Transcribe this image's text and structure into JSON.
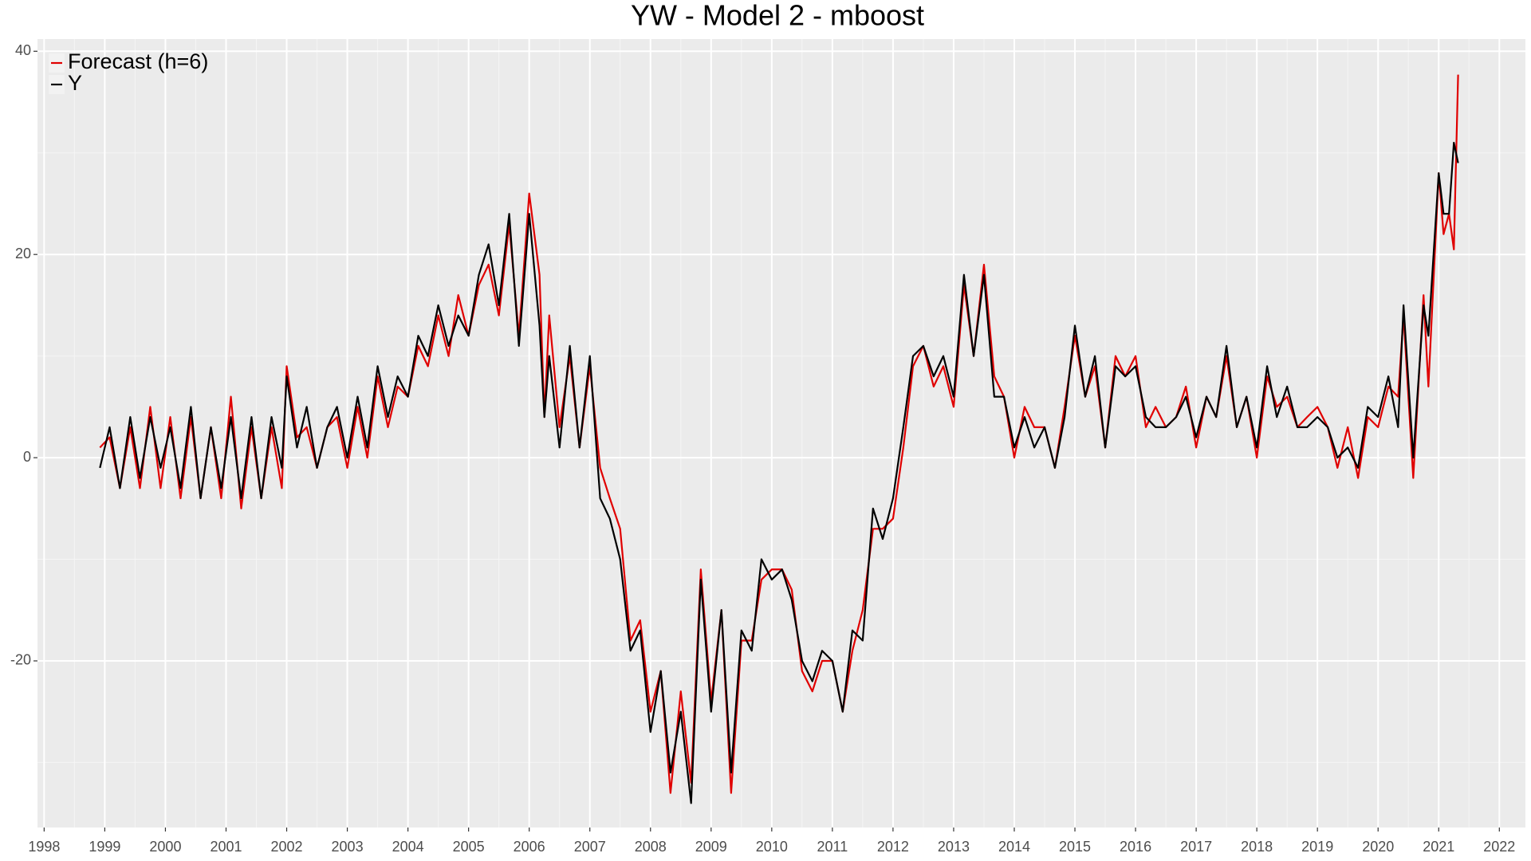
{
  "chart_data": {
    "type": "line",
    "title": "YW - Model 2 - mboost",
    "x": [
      1998.92,
      1999.08,
      1999.25,
      1999.42,
      1999.58,
      1999.75,
      1999.92,
      2000.08,
      2000.25,
      2000.42,
      2000.58,
      2000.75,
      2000.92,
      2001.08,
      2001.25,
      2001.42,
      2001.58,
      2001.75,
      2001.92,
      2002.0,
      2002.17,
      2002.33,
      2002.5,
      2002.67,
      2002.83,
      2003.0,
      2003.17,
      2003.33,
      2003.5,
      2003.67,
      2003.83,
      2004.0,
      2004.17,
      2004.33,
      2004.5,
      2004.67,
      2004.83,
      2005.0,
      2005.17,
      2005.33,
      2005.5,
      2005.67,
      2005.83,
      2006.0,
      2006.17,
      2006.25,
      2006.33,
      2006.5,
      2006.67,
      2006.83,
      2007.0,
      2007.17,
      2007.33,
      2007.5,
      2007.67,
      2007.83,
      2008.0,
      2008.17,
      2008.33,
      2008.5,
      2008.67,
      2008.83,
      2009.0,
      2009.17,
      2009.33,
      2009.5,
      2009.67,
      2009.83,
      2010.0,
      2010.17,
      2010.33,
      2010.5,
      2010.67,
      2010.83,
      2011.0,
      2011.17,
      2011.33,
      2011.5,
      2011.67,
      2011.83,
      2012.0,
      2012.17,
      2012.33,
      2012.5,
      2012.67,
      2012.83,
      2013.0,
      2013.17,
      2013.33,
      2013.5,
      2013.67,
      2013.83,
      2014.0,
      2014.17,
      2014.33,
      2014.5,
      2014.67,
      2014.83,
      2015.0,
      2015.17,
      2015.33,
      2015.5,
      2015.67,
      2015.83,
      2016.0,
      2016.17,
      2016.33,
      2016.5,
      2016.67,
      2016.83,
      2017.0,
      2017.17,
      2017.33,
      2017.5,
      2017.67,
      2017.83,
      2018.0,
      2018.17,
      2018.33,
      2018.5,
      2018.67,
      2018.83,
      2019.0,
      2019.17,
      2019.33,
      2019.5,
      2019.67,
      2019.83,
      2020.0,
      2020.17,
      2020.33,
      2020.42,
      2020.58,
      2020.75,
      2020.83,
      2021.0,
      2021.08,
      2021.17,
      2021.25,
      2021.32
    ],
    "series": [
      {
        "name": "Forecast (h=6)",
        "color": "#e00000",
        "values": [
          1,
          2,
          -3,
          3,
          -3,
          5,
          -3,
          4,
          -4,
          4,
          -4,
          3,
          -4,
          6,
          -5,
          3,
          -4,
          3,
          -3,
          9,
          2,
          3,
          -1,
          3,
          4,
          -1,
          5,
          0,
          8,
          3,
          7,
          6,
          11,
          9,
          14,
          10,
          16,
          12,
          17,
          19,
          14,
          23,
          12,
          26,
          18,
          4,
          14,
          3,
          10,
          1,
          9,
          -1,
          -4,
          -7,
          -18,
          -16,
          -25,
          -21,
          -33,
          -23,
          -32,
          -11,
          -24,
          -15,
          -33,
          -18,
          -18,
          -12,
          -11,
          -11,
          -13,
          -21,
          -23,
          -20,
          -20,
          -25,
          -19,
          -15,
          -7,
          -7,
          -6,
          1,
          9,
          11,
          7,
          9,
          5,
          17,
          10,
          19,
          8,
          6,
          0,
          5,
          3,
          3,
          -1,
          5,
          12,
          6,
          9,
          1,
          10,
          8,
          10,
          3,
          5,
          3,
          4,
          7,
          1,
          6,
          4,
          10,
          3,
          6,
          0,
          8,
          5,
          6,
          3,
          4,
          5,
          3,
          -1,
          3,
          -2,
          4,
          3,
          7,
          6,
          14,
          -2,
          16,
          7,
          28,
          22,
          24,
          20.5,
          37.7
        ]
      },
      {
        "name": "Y",
        "color": "#000000",
        "values": [
          -1,
          3,
          -3,
          4,
          -2,
          4,
          -1,
          3,
          -3,
          5,
          -4,
          3,
          -3,
          4,
          -4,
          4,
          -4,
          4,
          -1,
          8,
          1,
          5,
          -1,
          3,
          5,
          0,
          6,
          1,
          9,
          4,
          8,
          6,
          12,
          10,
          15,
          11,
          14,
          12,
          18,
          21,
          15,
          24,
          11,
          24,
          13,
          4,
          10,
          1,
          11,
          1,
          10,
          -4,
          -6,
          -10,
          -19,
          -17,
          -27,
          -21,
          -31,
          -25,
          -34,
          -12,
          -25,
          -15,
          -31,
          -17,
          -19,
          -10,
          -12,
          -11,
          -14,
          -20,
          -22,
          -19,
          -20,
          -25,
          -17,
          -18,
          -5,
          -8,
          -4,
          3,
          10,
          11,
          8,
          10,
          6,
          18,
          10,
          18,
          6,
          6,
          1,
          4,
          1,
          3,
          -1,
          4,
          13,
          6,
          10,
          1,
          9,
          8,
          9,
          4,
          3,
          3,
          4,
          6,
          2,
          6,
          4,
          11,
          3,
          6,
          1,
          9,
          4,
          7,
          3,
          3,
          4,
          3,
          0,
          1,
          -1,
          5,
          4,
          8,
          3,
          15,
          0,
          15,
          12,
          28,
          24,
          24,
          31,
          29
        ]
      }
    ],
    "xlim": [
      1997.89,
      2022.43
    ],
    "ylim": [
      -36.4,
      41.2
    ],
    "xticks": [
      1998,
      1999,
      2000,
      2001,
      2002,
      2003,
      2004,
      2005,
      2006,
      2007,
      2008,
      2009,
      2010,
      2011,
      2012,
      2013,
      2014,
      2015,
      2016,
      2017,
      2018,
      2019,
      2020,
      2021,
      2022
    ],
    "yticks": [
      -20,
      0,
      20,
      40
    ],
    "grid": true,
    "legend_position": "top-left"
  }
}
